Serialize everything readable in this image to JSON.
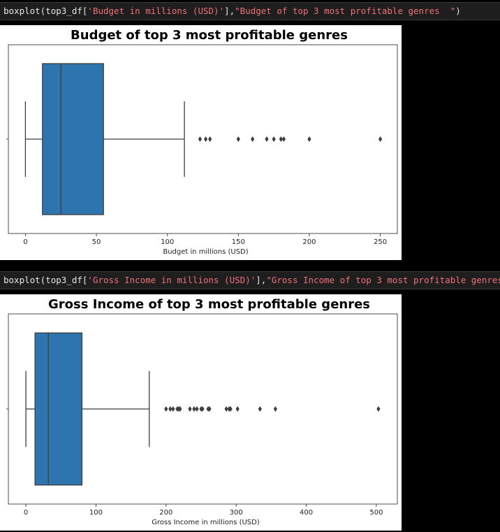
{
  "cells": [
    {
      "code": {
        "fn": "boxplot(top3_df[",
        "arg1": "'Budget in millions (USD)'",
        "mid": "],",
        "arg2": "\"Budget of top 3 most profitable genres  \"",
        "end": ")"
      }
    },
    {
      "code": {
        "fn": "boxplot(top3_df[",
        "arg1": "'Gross Income in millions (USD)'",
        "mid": "],",
        "arg2": "\"Gross Income of top 3 most profitable genres  \"",
        "end": ")"
      }
    }
  ],
  "colors": {
    "box_fill": "#2e75b0",
    "line": "#3d3d3d",
    "code_string": "#f07178"
  },
  "chart_data": [
    {
      "type": "box",
      "orientation": "horizontal",
      "title": "Budget of top 3 most profitable genres",
      "xlabel": "Budget in millions (USD)",
      "xlim": [
        -12,
        262
      ],
      "xticks": [
        0,
        50,
        100,
        150,
        200,
        250
      ],
      "whisker_low": 0,
      "q1": 12,
      "median": 25,
      "q3": 55,
      "whisker_high": 112,
      "outliers": [
        123,
        127,
        130,
        150,
        160,
        170,
        175,
        180,
        182,
        200,
        250
      ]
    },
    {
      "type": "box",
      "orientation": "horizontal",
      "title": "Gross Income of top 3 most profitable genres",
      "xlabel": "Gross Income in millions (USD)",
      "xlim": [
        -25,
        530
      ],
      "xticks": [
        0,
        100,
        200,
        300,
        400,
        500
      ],
      "whisker_low": 0,
      "q1": 13,
      "median": 32,
      "q3": 80,
      "whisker_high": 176,
      "outliers": [
        200,
        206,
        210,
        216,
        218,
        220,
        234,
        240,
        244,
        250,
        252,
        260,
        262,
        286,
        290,
        292,
        302,
        334,
        356,
        503
      ]
    }
  ]
}
